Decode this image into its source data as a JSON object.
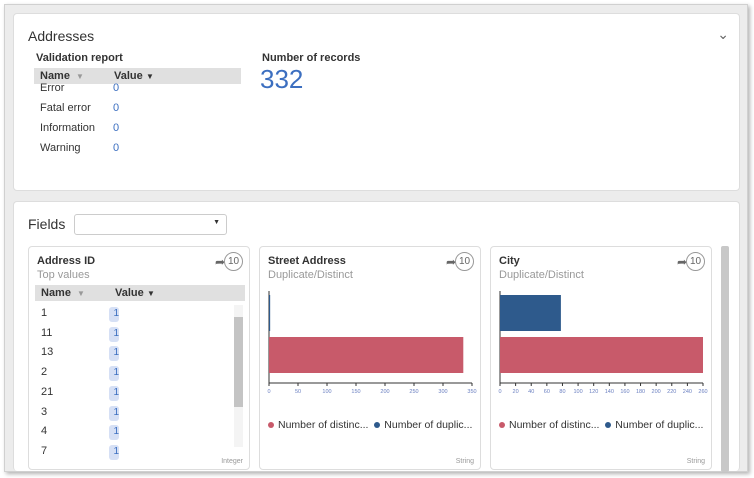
{
  "addresses": {
    "title": "Addresses",
    "validation_title": "Validation report",
    "col_name": "Name",
    "col_value": "Value",
    "rows": [
      {
        "name": "Error",
        "value": "0"
      },
      {
        "name": "Fatal error",
        "value": "0"
      },
      {
        "name": "Information",
        "value": "0"
      },
      {
        "name": "Warning",
        "value": "0"
      }
    ],
    "records_label": "Number of records",
    "records_value": "332"
  },
  "fields": {
    "title": "Fields",
    "select_value": "",
    "panels": [
      {
        "title": "Address ID",
        "subtitle": "Top values",
        "badge": "10",
        "type": "Integer",
        "col_name": "Name",
        "col_value": "Value",
        "rows": [
          {
            "name": "1",
            "value": "1"
          },
          {
            "name": "11",
            "value": "1"
          },
          {
            "name": "13",
            "value": "1"
          },
          {
            "name": "2",
            "value": "1"
          },
          {
            "name": "21",
            "value": "1"
          },
          {
            "name": "3",
            "value": "1"
          },
          {
            "name": "4",
            "value": "1"
          },
          {
            "name": "7",
            "value": "1"
          }
        ]
      },
      {
        "title": "Street Address",
        "subtitle": "Duplicate/Distinct",
        "badge": "10",
        "type": "String",
        "legend": [
          "Number of distinc...",
          "Number of duplic..."
        ]
      },
      {
        "title": "City",
        "subtitle": "Duplicate/Distinct",
        "badge": "10",
        "type": "String",
        "legend": [
          "Number of distinc...",
          "Number of duplic..."
        ]
      }
    ]
  },
  "colors": {
    "distinct": "#c85a6a",
    "duplicate": "#2e5a8c",
    "accent": "#3c6fc0"
  },
  "chart_data": [
    {
      "type": "bar",
      "orientation": "horizontal",
      "categories": [
        "Number of duplicates",
        "Number of distinct"
      ],
      "series": [
        {
          "values": [
            2,
            335
          ]
        }
      ],
      "xlim": [
        0,
        350
      ],
      "ticks": [
        0,
        50,
        100,
        150,
        200,
        250,
        300,
        350
      ]
    },
    {
      "type": "bar",
      "orientation": "horizontal",
      "categories": [
        "Number of duplicates",
        "Number of distinct"
      ],
      "series": [
        {
          "values": [
            78,
            260
          ]
        }
      ],
      "xlim": [
        0,
        260
      ],
      "ticks": [
        0,
        20,
        40,
        60,
        80,
        100,
        120,
        140,
        160,
        180,
        200,
        220,
        240,
        260
      ]
    }
  ]
}
